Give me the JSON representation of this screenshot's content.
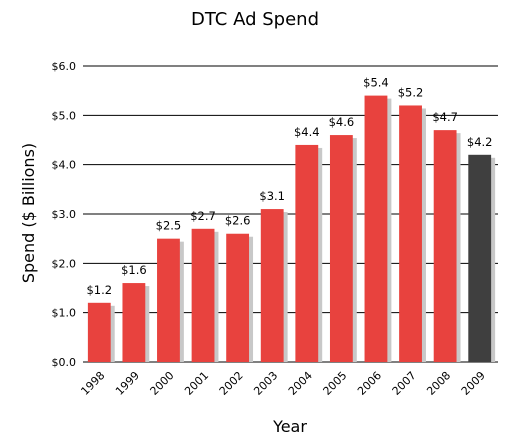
{
  "chart_data": {
    "type": "bar",
    "title": "DTC Ad Spend",
    "xlabel": "Year",
    "ylabel": "Spend ($ Billions)",
    "categories": [
      "1998",
      "1999",
      "2000",
      "2001",
      "2002",
      "2003",
      "2004",
      "2005",
      "2006",
      "2007",
      "2008",
      "2009"
    ],
    "values": [
      1.2,
      1.6,
      2.5,
      2.7,
      2.6,
      3.1,
      4.4,
      4.6,
      5.4,
      5.2,
      4.7,
      4.2
    ],
    "data_labels": [
      "$1.2",
      "$1.6",
      "$2.5",
      "$2.7",
      "$2.6",
      "$3.1",
      "$4.4",
      "$4.6",
      "$5.4",
      "$5.2",
      "$4.7",
      "$4.2"
    ],
    "yticks": [
      0,
      1,
      2,
      3,
      4,
      5,
      6
    ],
    "ytick_labels": [
      "$0.0",
      "$1.0",
      "$2.0",
      "$3.0",
      "$4.0",
      "$5.0",
      "$6.0"
    ],
    "ylim": [
      0,
      6
    ],
    "grid": true,
    "colors": {
      "bar": "#e8423e",
      "highlight": "#3f3f3f",
      "shadow": "#c8c8c8"
    },
    "highlight_category": "2009"
  }
}
